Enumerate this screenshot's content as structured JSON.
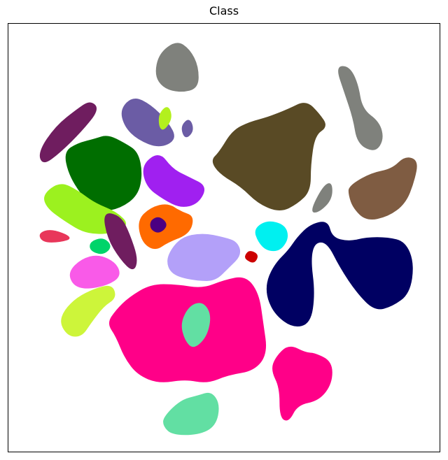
{
  "chart_data": {
    "type": "scatter",
    "title": "Class",
    "xlabel": "",
    "ylabel": "",
    "x_ticks": [],
    "y_ticks": [],
    "grid": false,
    "legend": "none",
    "clusters": [
      {
        "id": "grey-top",
        "color": "#7f817c",
        "shape": [
          [
            0.34,
            0.12
          ],
          [
            0.35,
            0.07
          ],
          [
            0.39,
            0.04
          ],
          [
            0.42,
            0.06
          ],
          [
            0.44,
            0.1
          ],
          [
            0.44,
            0.15
          ],
          [
            0.4,
            0.16
          ],
          [
            0.36,
            0.15
          ]
        ]
      },
      {
        "id": "grey-right-top",
        "color": "#7f817c",
        "shape": [
          [
            0.76,
            0.1
          ],
          [
            0.79,
            0.1
          ],
          [
            0.81,
            0.14
          ],
          [
            0.82,
            0.2
          ],
          [
            0.86,
            0.23
          ],
          [
            0.87,
            0.27
          ],
          [
            0.85,
            0.3
          ],
          [
            0.81,
            0.28
          ],
          [
            0.8,
            0.22
          ],
          [
            0.78,
            0.16
          ]
        ]
      },
      {
        "id": "brown-large",
        "color": "#594a25",
        "shape": [
          [
            0.49,
            0.3
          ],
          [
            0.52,
            0.25
          ],
          [
            0.56,
            0.23
          ],
          [
            0.6,
            0.22
          ],
          [
            0.65,
            0.2
          ],
          [
            0.69,
            0.18
          ],
          [
            0.72,
            0.21
          ],
          [
            0.74,
            0.24
          ],
          [
            0.71,
            0.26
          ],
          [
            0.7,
            0.33
          ],
          [
            0.7,
            0.39
          ],
          [
            0.67,
            0.42
          ],
          [
            0.63,
            0.44
          ],
          [
            0.58,
            0.42
          ],
          [
            0.54,
            0.38
          ],
          [
            0.49,
            0.35
          ],
          [
            0.47,
            0.32
          ]
        ]
      },
      {
        "id": "brown-right",
        "color": "#7f5c42",
        "shape": [
          [
            0.79,
            0.38
          ],
          [
            0.84,
            0.35
          ],
          [
            0.89,
            0.34
          ],
          [
            0.92,
            0.31
          ],
          [
            0.95,
            0.32
          ],
          [
            0.94,
            0.37
          ],
          [
            0.92,
            0.42
          ],
          [
            0.88,
            0.45
          ],
          [
            0.83,
            0.46
          ],
          [
            0.8,
            0.43
          ],
          [
            0.79,
            0.4
          ]
        ]
      },
      {
        "id": "grey-mid",
        "color": "#7f817c",
        "shape": [
          [
            0.7,
            0.44
          ],
          [
            0.73,
            0.38
          ],
          [
            0.75,
            0.37
          ],
          [
            0.75,
            0.41
          ],
          [
            0.72,
            0.44
          ]
        ]
      },
      {
        "id": "navy",
        "color": "#000062",
        "shape": [
          [
            0.6,
            0.6
          ],
          [
            0.62,
            0.56
          ],
          [
            0.65,
            0.53
          ],
          [
            0.67,
            0.5
          ],
          [
            0.7,
            0.47
          ],
          [
            0.74,
            0.46
          ],
          [
            0.75,
            0.5
          ],
          [
            0.79,
            0.51
          ],
          [
            0.83,
            0.5
          ],
          [
            0.88,
            0.5
          ],
          [
            0.92,
            0.51
          ],
          [
            0.94,
            0.56
          ],
          [
            0.93,
            0.63
          ],
          [
            0.89,
            0.66
          ],
          [
            0.85,
            0.67
          ],
          [
            0.81,
            0.63
          ],
          [
            0.77,
            0.57
          ],
          [
            0.74,
            0.51
          ],
          [
            0.71,
            0.51
          ],
          [
            0.7,
            0.55
          ],
          [
            0.71,
            0.63
          ],
          [
            0.7,
            0.7
          ],
          [
            0.66,
            0.71
          ],
          [
            0.62,
            0.68
          ],
          [
            0.6,
            0.64
          ]
        ]
      },
      {
        "id": "cyan",
        "color": "#00f0f0",
        "shape": [
          [
            0.57,
            0.48
          ],
          [
            0.6,
            0.46
          ],
          [
            0.64,
            0.47
          ],
          [
            0.65,
            0.5
          ],
          [
            0.63,
            0.53
          ],
          [
            0.6,
            0.53
          ],
          [
            0.58,
            0.51
          ]
        ]
      },
      {
        "id": "red-small",
        "color": "#cc0000",
        "shape": [
          [
            0.55,
            0.54
          ],
          [
            0.56,
            0.53
          ],
          [
            0.58,
            0.54
          ],
          [
            0.57,
            0.56
          ],
          [
            0.55,
            0.55
          ]
        ]
      },
      {
        "id": "lavender",
        "color": "#b3a0f9",
        "shape": [
          [
            0.37,
            0.54
          ],
          [
            0.4,
            0.5
          ],
          [
            0.45,
            0.49
          ],
          [
            0.5,
            0.5
          ],
          [
            0.53,
            0.51
          ],
          [
            0.54,
            0.54
          ],
          [
            0.51,
            0.57
          ],
          [
            0.48,
            0.6
          ],
          [
            0.44,
            0.6
          ],
          [
            0.39,
            0.59
          ],
          [
            0.37,
            0.57
          ]
        ]
      },
      {
        "id": "orange",
        "color": "#ff6a00",
        "shape": [
          [
            0.3,
            0.46
          ],
          [
            0.33,
            0.43
          ],
          [
            0.37,
            0.42
          ],
          [
            0.4,
            0.44
          ],
          [
            0.43,
            0.45
          ],
          [
            0.42,
            0.49
          ],
          [
            0.37,
            0.51
          ],
          [
            0.34,
            0.53
          ],
          [
            0.31,
            0.51
          ]
        ]
      },
      {
        "id": "green-dark",
        "color": "#006e00",
        "shape": [
          [
            0.13,
            0.3
          ],
          [
            0.16,
            0.28
          ],
          [
            0.2,
            0.27
          ],
          [
            0.23,
            0.26
          ],
          [
            0.27,
            0.28
          ],
          [
            0.3,
            0.3
          ],
          [
            0.31,
            0.35
          ],
          [
            0.3,
            0.4
          ],
          [
            0.26,
            0.43
          ],
          [
            0.21,
            0.44
          ],
          [
            0.17,
            0.4
          ],
          [
            0.14,
            0.35
          ]
        ]
      },
      {
        "id": "lime-left",
        "color": "#9cf11f",
        "shape": [
          [
            0.08,
            0.4
          ],
          [
            0.12,
            0.37
          ],
          [
            0.16,
            0.39
          ],
          [
            0.2,
            0.42
          ],
          [
            0.25,
            0.44
          ],
          [
            0.28,
            0.47
          ],
          [
            0.24,
            0.49
          ],
          [
            0.18,
            0.49
          ],
          [
            0.13,
            0.46
          ],
          [
            0.09,
            0.43
          ]
        ]
      },
      {
        "id": "purple",
        "color": "#a020f0",
        "shape": [
          [
            0.31,
            0.33
          ],
          [
            0.35,
            0.3
          ],
          [
            0.38,
            0.34
          ],
          [
            0.42,
            0.36
          ],
          [
            0.46,
            0.38
          ],
          [
            0.44,
            0.42
          ],
          [
            0.4,
            0.43
          ],
          [
            0.36,
            0.41
          ],
          [
            0.32,
            0.38
          ]
        ]
      },
      {
        "id": "slate-violet",
        "color": "#6b5ca5",
        "shape": [
          [
            0.26,
            0.2
          ],
          [
            0.29,
            0.17
          ],
          [
            0.33,
            0.19
          ],
          [
            0.37,
            0.23
          ],
          [
            0.39,
            0.27
          ],
          [
            0.35,
            0.29
          ],
          [
            0.3,
            0.27
          ],
          [
            0.27,
            0.24
          ]
        ]
      },
      {
        "id": "slate-small",
        "color": "#6b5ca5",
        "shape": [
          [
            0.4,
            0.24
          ],
          [
            0.42,
            0.22
          ],
          [
            0.43,
            0.25
          ],
          [
            0.41,
            0.27
          ]
        ]
      },
      {
        "id": "plum-streaks",
        "color": "#6f1d5f",
        "shape": [
          [
            0.07,
            0.3
          ],
          [
            0.11,
            0.24
          ],
          [
            0.16,
            0.2
          ],
          [
            0.19,
            0.18
          ],
          [
            0.21,
            0.2
          ],
          [
            0.17,
            0.25
          ],
          [
            0.12,
            0.3
          ],
          [
            0.08,
            0.33
          ]
        ]
      },
      {
        "id": "plum-lower",
        "color": "#6f1d5f",
        "shape": [
          [
            0.22,
            0.44
          ],
          [
            0.26,
            0.45
          ],
          [
            0.28,
            0.49
          ],
          [
            0.3,
            0.55
          ],
          [
            0.29,
            0.58
          ],
          [
            0.26,
            0.55
          ],
          [
            0.23,
            0.5
          ]
        ]
      },
      {
        "id": "chartreuse-top",
        "color": "#b3f01e",
        "shape": [
          [
            0.35,
            0.21
          ],
          [
            0.37,
            0.19
          ],
          [
            0.38,
            0.22
          ],
          [
            0.36,
            0.25
          ],
          [
            0.35,
            0.24
          ]
        ]
      },
      {
        "id": "pink-magenta",
        "color": "#f95ae8",
        "shape": [
          [
            0.14,
            0.58
          ],
          [
            0.17,
            0.55
          ],
          [
            0.21,
            0.54
          ],
          [
            0.25,
            0.56
          ],
          [
            0.26,
            0.59
          ],
          [
            0.23,
            0.61
          ],
          [
            0.18,
            0.62
          ],
          [
            0.15,
            0.61
          ]
        ]
      },
      {
        "id": "emerald-small",
        "color": "#00d46a",
        "shape": [
          [
            0.19,
            0.51
          ],
          [
            0.22,
            0.5
          ],
          [
            0.24,
            0.52
          ],
          [
            0.22,
            0.54
          ],
          [
            0.19,
            0.53
          ]
        ]
      },
      {
        "id": "coral",
        "color": "#e8375a",
        "shape": [
          [
            0.07,
            0.49
          ],
          [
            0.1,
            0.48
          ],
          [
            0.15,
            0.5
          ],
          [
            0.12,
            0.51
          ],
          [
            0.08,
            0.51
          ]
        ]
      },
      {
        "id": "yellow-green",
        "color": "#cdf53a",
        "shape": [
          [
            0.13,
            0.67
          ],
          [
            0.16,
            0.64
          ],
          [
            0.2,
            0.62
          ],
          [
            0.24,
            0.61
          ],
          [
            0.25,
            0.64
          ],
          [
            0.22,
            0.66
          ],
          [
            0.19,
            0.7
          ],
          [
            0.17,
            0.73
          ],
          [
            0.14,
            0.73
          ],
          [
            0.12,
            0.7
          ]
        ]
      },
      {
        "id": "hot-pink",
        "color": "#ff0088",
        "shape": [
          [
            0.28,
            0.64
          ],
          [
            0.33,
            0.61
          ],
          [
            0.39,
            0.61
          ],
          [
            0.45,
            0.62
          ],
          [
            0.5,
            0.6
          ],
          [
            0.55,
            0.59
          ],
          [
            0.58,
            0.63
          ],
          [
            0.59,
            0.7
          ],
          [
            0.6,
            0.77
          ],
          [
            0.57,
            0.81
          ],
          [
            0.51,
            0.82
          ],
          [
            0.46,
            0.84
          ],
          [
            0.41,
            0.83
          ],
          [
            0.35,
            0.84
          ],
          [
            0.3,
            0.82
          ],
          [
            0.27,
            0.78
          ],
          [
            0.25,
            0.73
          ],
          [
            0.23,
            0.7
          ],
          [
            0.25,
            0.67
          ]
        ]
      },
      {
        "id": "hot-pink-right",
        "color": "#ff0088",
        "shape": [
          [
            0.62,
            0.78
          ],
          [
            0.65,
            0.75
          ],
          [
            0.69,
            0.77
          ],
          [
            0.71,
            0.77
          ],
          [
            0.75,
            0.79
          ],
          [
            0.75,
            0.84
          ],
          [
            0.72,
            0.88
          ],
          [
            0.67,
            0.89
          ],
          [
            0.65,
            0.93
          ],
          [
            0.63,
            0.92
          ],
          [
            0.63,
            0.85
          ],
          [
            0.61,
            0.81
          ]
        ]
      },
      {
        "id": "mint",
        "color": "#62dfa3",
        "shape": [
          [
            0.36,
            0.92
          ],
          [
            0.4,
            0.88
          ],
          [
            0.44,
            0.87
          ],
          [
            0.47,
            0.86
          ],
          [
            0.49,
            0.89
          ],
          [
            0.48,
            0.94
          ],
          [
            0.44,
            0.96
          ],
          [
            0.38,
            0.96
          ],
          [
            0.36,
            0.94
          ]
        ]
      },
      {
        "id": "mint-mid",
        "color": "#62dfa3",
        "shape": [
          [
            0.4,
            0.7
          ],
          [
            0.42,
            0.66
          ],
          [
            0.45,
            0.65
          ],
          [
            0.47,
            0.68
          ],
          [
            0.46,
            0.73
          ],
          [
            0.43,
            0.76
          ],
          [
            0.41,
            0.74
          ]
        ]
      },
      {
        "id": "indigo-small",
        "color": "#4b0082",
        "shape": [
          [
            0.33,
            0.46
          ],
          [
            0.35,
            0.45
          ],
          [
            0.37,
            0.47
          ],
          [
            0.35,
            0.49
          ],
          [
            0.33,
            0.48
          ]
        ]
      }
    ]
  }
}
